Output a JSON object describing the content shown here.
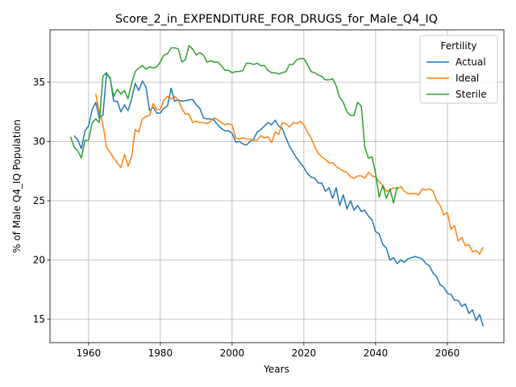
{
  "chart_data": {
    "type": "line",
    "title": "Score_2_in_EXPENDITURE_FOR_DRUGS_for_Male_Q4_IQ",
    "x_label": "Years",
    "y_label": "% of Male Q4_IQ Population",
    "legend_title": "Fertility",
    "legend_position": "upper right",
    "grid": true,
    "xlim": [
      1949.25,
      2075.75
    ],
    "ylim": [
      13.03,
      39.42
    ],
    "xticks": [
      1960,
      1980,
      2000,
      2020,
      2040,
      2060
    ],
    "yticks": [
      15,
      20,
      25,
      30,
      35
    ],
    "x": [
      1955,
      1956,
      1957,
      1958,
      1959,
      1960,
      1961,
      1962,
      1963,
      1964,
      1965,
      1966,
      1967,
      1968,
      1969,
      1970,
      1971,
      1972,
      1973,
      1974,
      1975,
      1976,
      1977,
      1978,
      1979,
      1980,
      1981,
      1982,
      1983,
      1984,
      1985,
      1986,
      1987,
      1988,
      1989,
      1990,
      1991,
      1992,
      1993,
      1994,
      1995,
      1996,
      1997,
      1998,
      1999,
      2000,
      2001,
      2002,
      2003,
      2004,
      2005,
      2006,
      2007,
      2008,
      2009,
      2010,
      2011,
      2012,
      2013,
      2014,
      2015,
      2016,
      2017,
      2018,
      2019,
      2020,
      2021,
      2022,
      2023,
      2024,
      2025,
      2026,
      2027,
      2028,
      2029,
      2030,
      2031,
      2032,
      2033,
      2034,
      2035,
      2036,
      2037,
      2038,
      2039,
      2040,
      2041,
      2042,
      2043,
      2044,
      2045,
      2046,
      2047,
      2048,
      2049,
      2050,
      2051,
      2052,
      2053,
      2054,
      2055,
      2056,
      2057,
      2058,
      2059,
      2060,
      2061,
      2062,
      2063,
      2064,
      2065,
      2066,
      2067,
      2068,
      2069,
      2070
    ],
    "series": [
      {
        "name": "Actual",
        "color": "#1f77b4",
        "values": [
          null,
          30.5,
          30.1,
          29.4,
          30.9,
          31.3,
          32.7,
          33.3,
          32.0,
          32.2,
          35.7,
          35.4,
          33.4,
          33.4,
          32.5,
          33.1,
          32.6,
          33.6,
          34.9,
          34.3,
          35.1,
          34.6,
          32.6,
          32.9,
          32.4,
          32.4,
          32.8,
          33.0,
          34.5,
          33.4,
          33.5,
          33.4,
          33.45,
          33.5,
          33.55,
          33.1,
          32.8,
          32.0,
          31.9,
          31.9,
          31.8,
          31.4,
          31.1,
          30.9,
          30.9,
          30.7,
          29.95,
          30.0,
          29.8,
          29.7,
          30.0,
          30.2,
          30.8,
          31.0,
          31.3,
          31.6,
          31.4,
          31.8,
          31.3,
          31.1,
          30.3,
          29.6,
          29.1,
          28.6,
          28.2,
          27.8,
          27.3,
          27.0,
          26.9,
          26.5,
          26.5,
          25.8,
          26.1,
          25.2,
          26.1,
          24.6,
          25.5,
          24.3,
          25.0,
          24.2,
          24.6,
          24.1,
          24.2,
          23.7,
          23.4,
          22.4,
          22.2,
          21.3,
          21.0,
          20.0,
          20.2,
          19.7,
          20.0,
          19.8,
          20.1,
          20.2,
          20.3,
          20.2,
          20.1,
          19.7,
          19.5,
          18.9,
          18.6,
          17.9,
          17.7,
          17.2,
          17.1,
          16.6,
          16.6,
          16.1,
          16.3,
          15.5,
          15.8,
          14.9,
          15.4,
          14.4
        ]
      },
      {
        "name": "Ideal",
        "color": "#ff7f0e",
        "values": [
          null,
          null,
          null,
          null,
          null,
          null,
          null,
          34.0,
          32.5,
          31.5,
          29.5,
          29.1,
          28.6,
          28.2,
          27.8,
          28.9,
          27.9,
          28.7,
          31.0,
          30.8,
          31.9,
          32.1,
          32.2,
          33.2,
          32.7,
          32.7,
          33.5,
          33.8,
          33.6,
          33.8,
          33.5,
          32.8,
          32.3,
          32.3,
          31.6,
          31.7,
          31.6,
          31.6,
          31.5,
          31.7,
          32.0,
          31.8,
          31.6,
          31.4,
          31.5,
          31.4,
          30.3,
          30.2,
          30.3,
          30.2,
          30.2,
          30.1,
          30.1,
          30.5,
          30.3,
          30.4,
          29.9,
          30.8,
          30.6,
          31.6,
          31.5,
          31.2,
          31.6,
          31.5,
          31.7,
          31.4,
          30.8,
          30.3,
          29.6,
          29.0,
          28.7,
          28.5,
          28.2,
          28.2,
          27.9,
          27.7,
          27.5,
          27.4,
          27.0,
          26.9,
          27.1,
          27.1,
          26.9,
          27.4,
          27.1,
          27.0,
          26.6,
          26.3,
          25.8,
          25.9,
          26.1,
          26.0,
          26.2,
          25.8,
          25.6,
          25.6,
          25.6,
          25.5,
          26.0,
          25.9,
          26.0,
          25.8,
          25.0,
          24.6,
          23.8,
          24.0,
          22.6,
          22.9,
          21.6,
          21.9,
          21.2,
          21.3,
          20.7,
          20.8,
          20.5,
          21.1
        ]
      },
      {
        "name": "Sterile",
        "color": "#2ca02c",
        "values": [
          30.4,
          29.5,
          29.2,
          28.6,
          30.1,
          30.1,
          31.6,
          31.9,
          31.6,
          35.5,
          35.8,
          35.3,
          33.8,
          34.4,
          34.0,
          34.3,
          33.6,
          34.9,
          35.9,
          36.2,
          36.4,
          36.1,
          36.3,
          36.2,
          36.3,
          36.7,
          37.3,
          37.4,
          37.9,
          37.9,
          37.8,
          36.7,
          36.9,
          38.1,
          37.8,
          37.3,
          37.5,
          37.3,
          36.7,
          36.8,
          36.7,
          36.7,
          36.4,
          36.0,
          36.0,
          35.8,
          35.9,
          35.9,
          36.0,
          36.6,
          36.6,
          36.5,
          36.6,
          36.4,
          36.4,
          36.0,
          35.8,
          35.8,
          35.7,
          35.8,
          35.9,
          36.5,
          36.5,
          36.9,
          37.0,
          37.0,
          36.5,
          35.9,
          35.8,
          35.6,
          35.5,
          35.2,
          35.2,
          35.3,
          34.7,
          33.7,
          33.3,
          32.5,
          32.2,
          32.2,
          33.3,
          33.0,
          29.5,
          28.6,
          28.7,
          27.3,
          25.3,
          26.3,
          25.2,
          26.0,
          24.8,
          26.2,
          null,
          null,
          null,
          null,
          null,
          null,
          null,
          null,
          null,
          null,
          null,
          null,
          null,
          null,
          null,
          null,
          null,
          null,
          null,
          null,
          null,
          null,
          null,
          null
        ]
      }
    ]
  }
}
